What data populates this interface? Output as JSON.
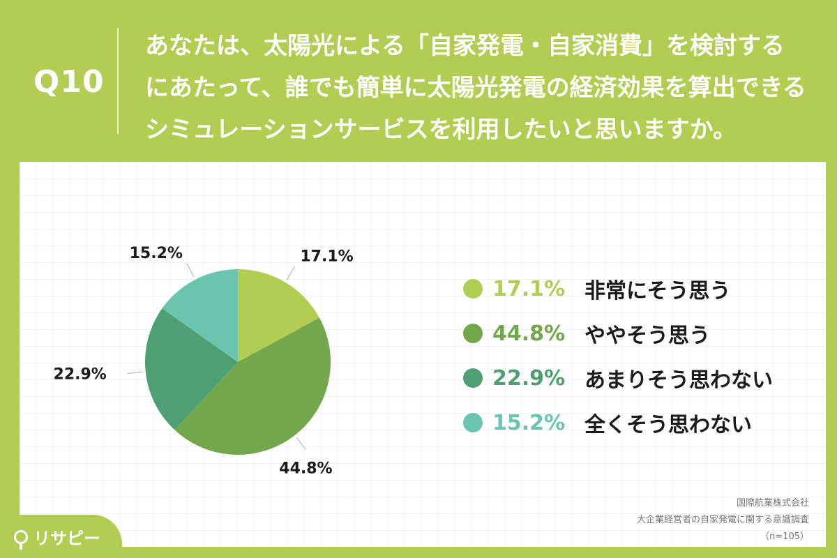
{
  "header": {
    "qnum": "Q10",
    "question_lines": [
      "あなたは、太陽光による「自家発電・自家消費」を検討する",
      "にあたって、誰でも簡単に太陽光発電の経済効果を算出できる",
      "シミュレーションサービスを利用したいと思いますか。"
    ]
  },
  "chart_data": {
    "type": "pie",
    "title": "",
    "slices": [
      {
        "label": "非常にそう思う",
        "value": 17.1,
        "display": "17.1%",
        "color": "#b3cd52"
      },
      {
        "label": "ややそう思う",
        "value": 44.8,
        "display": "44.8%",
        "color": "#72a74c"
      },
      {
        "label": "あまりそう思わない",
        "value": 22.9,
        "display": "22.9%",
        "color": "#4f9f74"
      },
      {
        "label": "全くそう思わない",
        "value": 15.2,
        "display": "15.2%",
        "color": "#6bc4ae"
      }
    ],
    "legend_position": "right"
  },
  "source": {
    "company": "国際航業株式会社",
    "survey": "大企業経営者の自家発電に関する意識調査",
    "sample": "（n=105）"
  },
  "brand": {
    "name": "リサピー"
  }
}
